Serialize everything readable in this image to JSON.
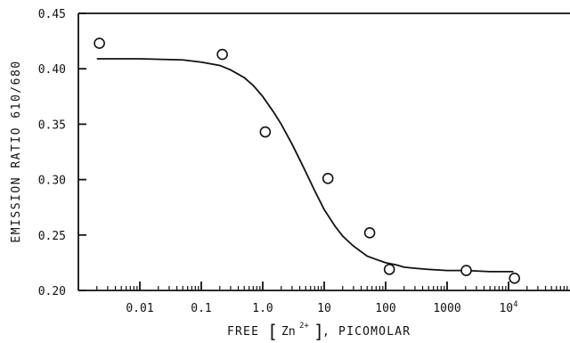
{
  "chart_data": {
    "type": "scatter",
    "title": "",
    "xlabel_prefix": "FREE",
    "xlabel_ion": "Zn",
    "xlabel_charge": "2+",
    "xlabel_suffix": ", PICOMOLAR",
    "ylabel": "EMISSION RATIO 610/680",
    "x_scale": "log",
    "xlim": [
      0.001,
      100000
    ],
    "ylim": [
      0.2,
      0.45
    ],
    "x_ticks": [
      {
        "value": 0.01,
        "label": "0.01"
      },
      {
        "value": 0.1,
        "label": "0.1"
      },
      {
        "value": 1,
        "label": "1.0"
      },
      {
        "value": 10,
        "label": "10"
      },
      {
        "value": 100,
        "label": "100"
      },
      {
        "value": 1000,
        "label": "1000"
      },
      {
        "value": 10000,
        "label": "10",
        "sup": "4"
      }
    ],
    "y_ticks": [
      {
        "value": 0.2,
        "label": "0.20"
      },
      {
        "value": 0.25,
        "label": "0.25"
      },
      {
        "value": 0.3,
        "label": "0.30"
      },
      {
        "value": 0.35,
        "label": "0.35"
      },
      {
        "value": 0.4,
        "label": "0.40"
      },
      {
        "value": 0.45,
        "label": "0.45"
      }
    ],
    "grid": false,
    "series": [
      {
        "kind": "points",
        "marker": "open-circle",
        "x": [
          0.0022,
          0.22,
          1.1,
          11.5,
          55,
          115,
          2050,
          12500
        ],
        "y": [
          0.423,
          0.413,
          0.343,
          0.301,
          0.252,
          0.219,
          0.218,
          0.211
        ]
      },
      {
        "kind": "fit-curve",
        "x": [
          0.002,
          0.01,
          0.05,
          0.1,
          0.2,
          0.3,
          0.5,
          0.7,
          1,
          1.5,
          2,
          3,
          4,
          5,
          7,
          10,
          15,
          20,
          30,
          50,
          70,
          100,
          150,
          200,
          300,
          500,
          1000,
          2000,
          5000,
          12000
        ],
        "y": [
          0.409,
          0.409,
          0.408,
          0.406,
          0.403,
          0.399,
          0.392,
          0.385,
          0.375,
          0.361,
          0.35,
          0.332,
          0.318,
          0.307,
          0.29,
          0.273,
          0.258,
          0.249,
          0.24,
          0.231,
          0.228,
          0.225,
          0.223,
          0.221,
          0.22,
          0.219,
          0.218,
          0.218,
          0.217,
          0.217
        ]
      }
    ]
  }
}
